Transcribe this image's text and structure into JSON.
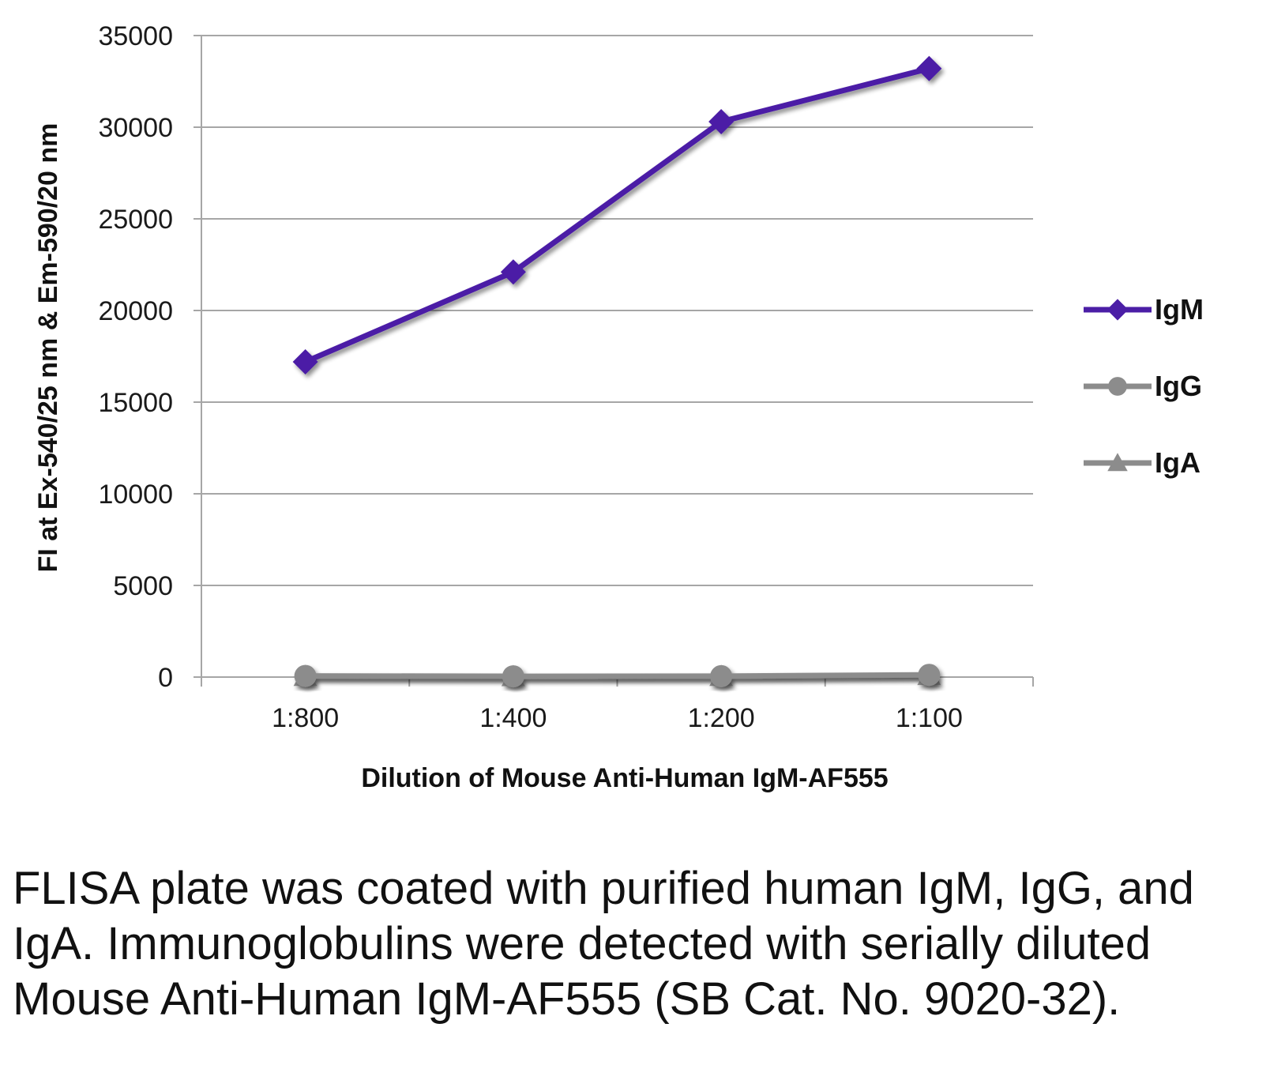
{
  "chart_data": {
    "type": "line",
    "categories": [
      "1:800",
      "1:400",
      "1:200",
      "1:100"
    ],
    "series": [
      {
        "name": "IgM",
        "values": [
          17200,
          22100,
          30300,
          33200
        ],
        "color": "#4b1ea6",
        "marker": "diamond"
      },
      {
        "name": "IgG",
        "values": [
          60,
          40,
          50,
          120
        ],
        "color": "#8c8c8c",
        "marker": "circle"
      },
      {
        "name": "IgA",
        "values": [
          30,
          20,
          30,
          80
        ],
        "color": "#8c8c8c",
        "marker": "triangle"
      }
    ],
    "xlabel": "Dilution of Mouse Anti-Human IgM-AF555",
    "ylabel": "FI at Ex-540/25 nm & Em-590/20 nm",
    "ylim": [
      0,
      35000
    ],
    "yticks": [
      0,
      5000,
      10000,
      15000,
      20000,
      25000,
      30000,
      35000
    ],
    "grid": true,
    "legend_position": "right"
  },
  "caption": "FLISA plate was coated with purified human IgM, IgG, and IgA.  Immunoglobulins were detected with serially diluted Mouse Anti-Human IgM-AF555 (SB Cat. No. 9020-32)."
}
